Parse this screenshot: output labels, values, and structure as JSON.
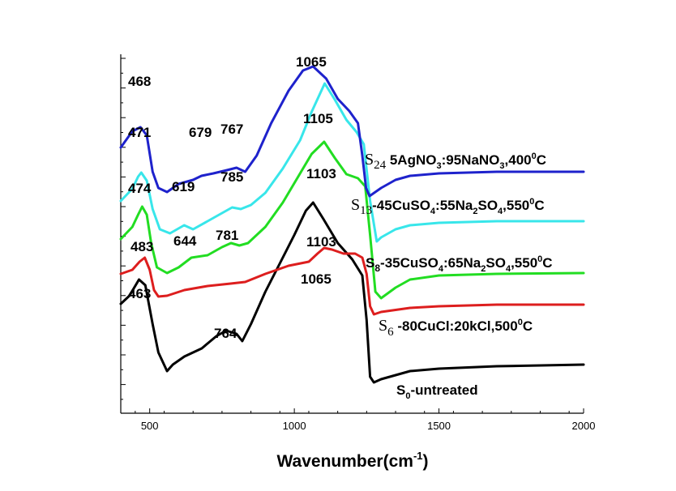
{
  "chart_data": {
    "type": "line",
    "title": "",
    "xlabel": "Wavenumber(cm",
    "xlabel_sup": "-1",
    "xlabel_end": ")",
    "ylabel": "",
    "xlim": [
      400,
      2000
    ],
    "xticks": [
      500,
      1000,
      1500,
      2000
    ],
    "x_tick_labels": [
      "500",
      "1000",
      "1500",
      "2000"
    ],
    "y_ticks_labeled": false,
    "series": [
      {
        "name": "S0-untreated",
        "color": "#000000",
        "label": {
          "s": "S",
          "sub": "0",
          "rest": "-untreated",
          "serif": false
        },
        "points": [
          [
            400,
            75
          ],
          [
            430,
            65
          ],
          [
            463,
            45
          ],
          [
            485,
            52
          ],
          [
            510,
            100
          ],
          [
            530,
            135
          ],
          [
            560,
            158
          ],
          [
            580,
            150
          ],
          [
            620,
            140
          ],
          [
            680,
            130
          ],
          [
            730,
            115
          ],
          [
            764,
            108
          ],
          [
            800,
            112
          ],
          [
            820,
            121
          ],
          [
            850,
            100
          ],
          [
            900,
            60
          ],
          [
            950,
            25
          ],
          [
            1000,
            -10
          ],
          [
            1040,
            -40
          ],
          [
            1065,
            -50
          ],
          [
            1100,
            -30
          ],
          [
            1150,
            0
          ],
          [
            1200,
            20
          ],
          [
            1235,
            40
          ],
          [
            1250,
            95
          ],
          [
            1262,
            165
          ],
          [
            1275,
            172
          ],
          [
            1300,
            168
          ],
          [
            1400,
            158
          ],
          [
            1500,
            155
          ],
          [
            1700,
            152
          ],
          [
            2000,
            150
          ]
        ]
      },
      {
        "name": "S6-80CuCl:20kCl,500°C",
        "color": "#dd1e1e",
        "label": {
          "s": "S",
          "sub": "6",
          "rest": " -80CuCl:20kCl,500",
          "deg": "0",
          "end": "C",
          "serif": true
        },
        "points": [
          [
            400,
            20
          ],
          [
            440,
            15
          ],
          [
            465,
            5
          ],
          [
            483,
            0
          ],
          [
            500,
            15
          ],
          [
            515,
            40
          ],
          [
            530,
            48
          ],
          [
            560,
            47
          ],
          [
            620,
            40
          ],
          [
            700,
            35
          ],
          [
            780,
            32
          ],
          [
            830,
            30
          ],
          [
            900,
            20
          ],
          [
            980,
            10
          ],
          [
            1050,
            5
          ],
          [
            1080,
            -5
          ],
          [
            1103,
            -12
          ],
          [
            1130,
            -10
          ],
          [
            1170,
            -5
          ],
          [
            1210,
            -5
          ],
          [
            1235,
            0
          ],
          [
            1250,
            20
          ],
          [
            1262,
            60
          ],
          [
            1275,
            70
          ],
          [
            1300,
            67
          ],
          [
            1400,
            62
          ],
          [
            1500,
            60
          ],
          [
            1700,
            58
          ],
          [
            2000,
            58
          ]
        ]
      },
      {
        "name": "S8-35CuSO4:65Na2SO4,550°C",
        "color": "#22dd22",
        "label": {
          "s": "S",
          "sub": "8",
          "rest": "-35CuSO",
          "sub2": "4",
          "rest2": ":65Na",
          "sub3": "2",
          "rest3": "SO",
          "sub4": "4",
          "rest4": ",550",
          "deg": "0",
          "end": "C",
          "serif": false
        },
        "points": [
          [
            400,
            35
          ],
          [
            440,
            20
          ],
          [
            460,
            5
          ],
          [
            474,
            -5
          ],
          [
            490,
            5
          ],
          [
            505,
            40
          ],
          [
            525,
            70
          ],
          [
            560,
            77
          ],
          [
            600,
            70
          ],
          [
            644,
            58
          ],
          [
            700,
            55
          ],
          [
            750,
            45
          ],
          [
            781,
            40
          ],
          [
            810,
            43
          ],
          [
            840,
            40
          ],
          [
            900,
            20
          ],
          [
            960,
            -10
          ],
          [
            1010,
            -40
          ],
          [
            1060,
            -70
          ],
          [
            1103,
            -85
          ],
          [
            1140,
            -65
          ],
          [
            1180,
            -45
          ],
          [
            1220,
            -40
          ],
          [
            1245,
            -30
          ],
          [
            1262,
            30
          ],
          [
            1280,
            100
          ],
          [
            1300,
            108
          ],
          [
            1350,
            95
          ],
          [
            1400,
            85
          ],
          [
            1500,
            80
          ],
          [
            1700,
            78
          ],
          [
            2000,
            77
          ]
        ]
      },
      {
        "name": "S13-45CuSO4:55Na2SO4,550°C",
        "color": "#38e6ea",
        "label": {
          "s": "S",
          "sub": "13",
          "rest": "-45CuSO",
          "sub2": "4",
          "rest2": ":55Na",
          "sub3": "2",
          "rest3": "SO",
          "sub4": "4",
          "rest4": ",550",
          "deg": "0",
          "end": "C",
          "serif": true
        },
        "points": [
          [
            400,
            30
          ],
          [
            440,
            15
          ],
          [
            460,
            0
          ],
          [
            471,
            -5
          ],
          [
            490,
            5
          ],
          [
            510,
            40
          ],
          [
            535,
            65
          ],
          [
            570,
            70
          ],
          [
            619,
            60
          ],
          [
            650,
            65
          ],
          [
            700,
            55
          ],
          [
            750,
            45
          ],
          [
            785,
            38
          ],
          [
            815,
            40
          ],
          [
            850,
            35
          ],
          [
            900,
            20
          ],
          [
            960,
            -10
          ],
          [
            1020,
            -45
          ],
          [
            1060,
            -80
          ],
          [
            1105,
            -115
          ],
          [
            1140,
            -95
          ],
          [
            1180,
            -70
          ],
          [
            1215,
            -55
          ],
          [
            1240,
            -40
          ],
          [
            1262,
            30
          ],
          [
            1285,
            80
          ],
          [
            1300,
            75
          ],
          [
            1350,
            65
          ],
          [
            1400,
            60
          ],
          [
            1500,
            57
          ],
          [
            1700,
            55
          ],
          [
            2000,
            55
          ]
        ]
      },
      {
        "name": "S24 5AgNO3:95NaNO3,400°C",
        "color": "#1e22cc",
        "label": {
          "s": "S",
          "sub": "24",
          "rest": " 5AgNO",
          "sub2": "3",
          "rest2": ":95NaNO",
          "sub3": "3",
          "rest3": ",400",
          "deg": "0",
          "end": "C",
          "serif": true
        },
        "points": [
          [
            400,
            40
          ],
          [
            440,
            20
          ],
          [
            468,
            15
          ],
          [
            490,
            25
          ],
          [
            510,
            70
          ],
          [
            530,
            90
          ],
          [
            560,
            95
          ],
          [
            600,
            85
          ],
          [
            650,
            80
          ],
          [
            679,
            75
          ],
          [
            720,
            72
          ],
          [
            767,
            68
          ],
          [
            800,
            65
          ],
          [
            830,
            70
          ],
          [
            870,
            50
          ],
          [
            920,
            10
          ],
          [
            980,
            -30
          ],
          [
            1030,
            -55
          ],
          [
            1065,
            -60
          ],
          [
            1110,
            -45
          ],
          [
            1150,
            -20
          ],
          [
            1190,
            -5
          ],
          [
            1220,
            10
          ],
          [
            1235,
            50
          ],
          [
            1248,
            90
          ],
          [
            1260,
            100
          ],
          [
            1300,
            90
          ],
          [
            1350,
            80
          ],
          [
            1400,
            75
          ],
          [
            1500,
            72
          ],
          [
            1700,
            70
          ],
          [
            2000,
            70
          ]
        ]
      }
    ],
    "peak_labels": [
      {
        "text": "468",
        "series": 4
      },
      {
        "text": "1065",
        "series": 4
      },
      {
        "text": "679",
        "series": 4
      },
      {
        "text": "767",
        "series": 4
      },
      {
        "text": "471",
        "series": 3
      },
      {
        "text": "1105",
        "series": 3
      },
      {
        "text": "619",
        "series": 3
      },
      {
        "text": "785",
        "series": 3
      },
      {
        "text": "474",
        "series": 2
      },
      {
        "text": "1103",
        "series": 2
      },
      {
        "text": "644",
        "series": 2
      },
      {
        "text": "781",
        "series": 2
      },
      {
        "text": "483",
        "series": 1
      },
      {
        "text": "1103",
        "series": 1
      },
      {
        "text": "463",
        "series": 0
      },
      {
        "text": "1065",
        "series": 0
      },
      {
        "text": "764",
        "series": 0
      }
    ]
  }
}
